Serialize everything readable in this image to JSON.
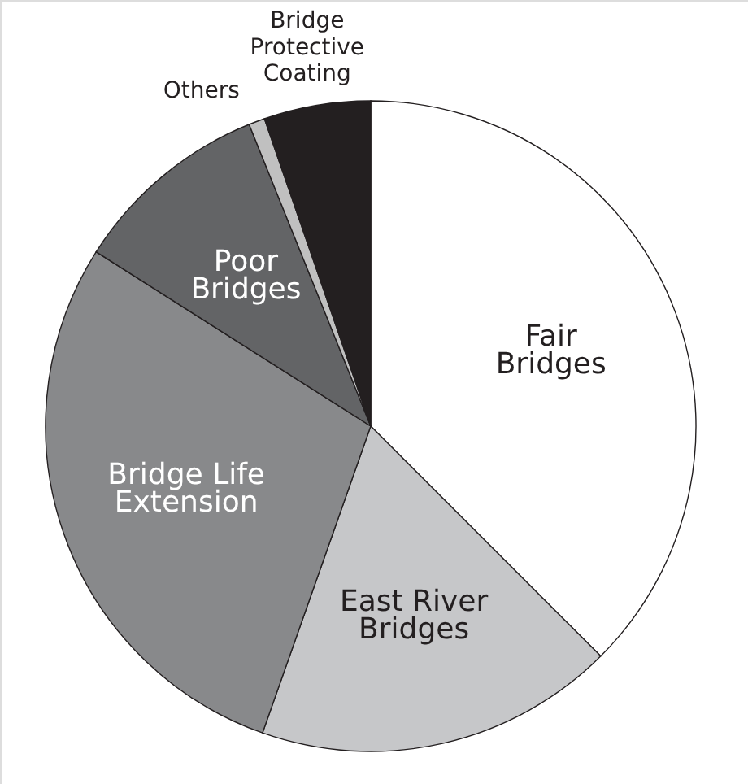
{
  "chart_data": {
    "type": "pie",
    "categories": [
      "Fair Bridges",
      "East River Bridges",
      "Bridge Life Extension",
      "Poor Bridges",
      "Others",
      "Bridge Protective Coating"
    ],
    "values": [
      37.5,
      17.9,
      28.6,
      9.9,
      0.8,
      5.3
    ],
    "colors": [
      "#ffffff",
      "#c6c7c9",
      "#88898b",
      "#636466",
      "#c0c0c0",
      "#231f20"
    ]
  }
}
